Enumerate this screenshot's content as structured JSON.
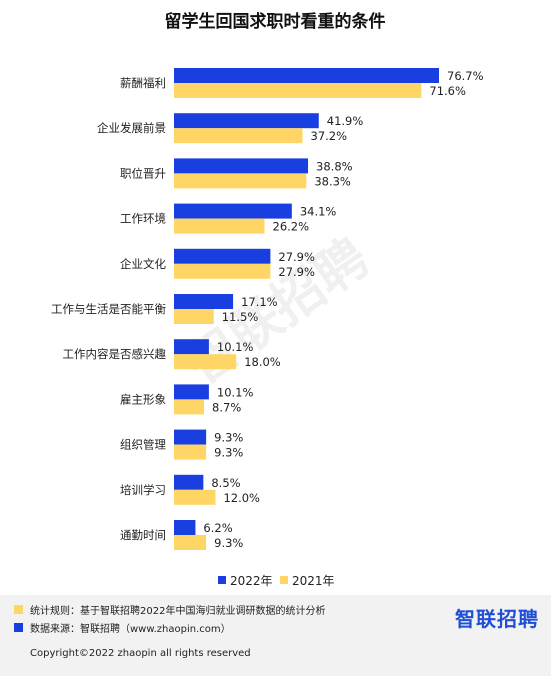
{
  "chart_data": {
    "type": "bar",
    "title": "留学生回国求职时看重的条件",
    "categories": [
      "薪酬福利",
      "企业发展前景",
      "职位晋升",
      "工作环境",
      "企业文化",
      "工作与生活是否能平衡",
      "工作内容是否感兴趣",
      "雇主形象",
      "组织管理",
      "培训学习",
      "通勤时间"
    ],
    "series": [
      {
        "name": "2022年",
        "color": "#1a3fe0",
        "values": [
          76.7,
          41.9,
          38.8,
          34.1,
          27.9,
          17.1,
          10.1,
          10.1,
          9.3,
          8.5,
          6.2
        ],
        "labels": [
          "76.7%",
          "41.9%",
          "38.8%",
          "34.1%",
          "27.9%",
          "17.1%",
          "10.1%",
          "10.1%",
          "9.3%",
          "8.5%",
          "6.2%"
        ]
      },
      {
        "name": "2021年",
        "color": "#ffd666",
        "values": [
          71.6,
          37.2,
          38.3,
          26.2,
          27.9,
          11.5,
          18.0,
          8.7,
          9.3,
          12.0,
          9.3
        ],
        "labels": [
          "71.6%",
          "37.2%",
          "38.3%",
          "26.2%",
          "27.9%",
          "11.5%",
          "18.0%",
          "8.7%",
          "9.3%",
          "12.0%",
          "9.3%"
        ]
      }
    ],
    "orientation": "horizontal",
    "xlim": [
      0,
      80
    ],
    "legend_position": "bottom-center",
    "grid": false
  },
  "footer": {
    "note1_label": "统计规则：基于智联招聘2022年中国海归就业调研数据的统计分析",
    "note1_color": "#ffd666",
    "note2_label": "数据来源：智联招聘（www.zhaopin.com）",
    "note2_color": "#1a3fe0",
    "logo_text": "智联招聘",
    "copyright": "Copyright©2022 zhaopin all rights reserved"
  },
  "watermark": "智联招聘"
}
